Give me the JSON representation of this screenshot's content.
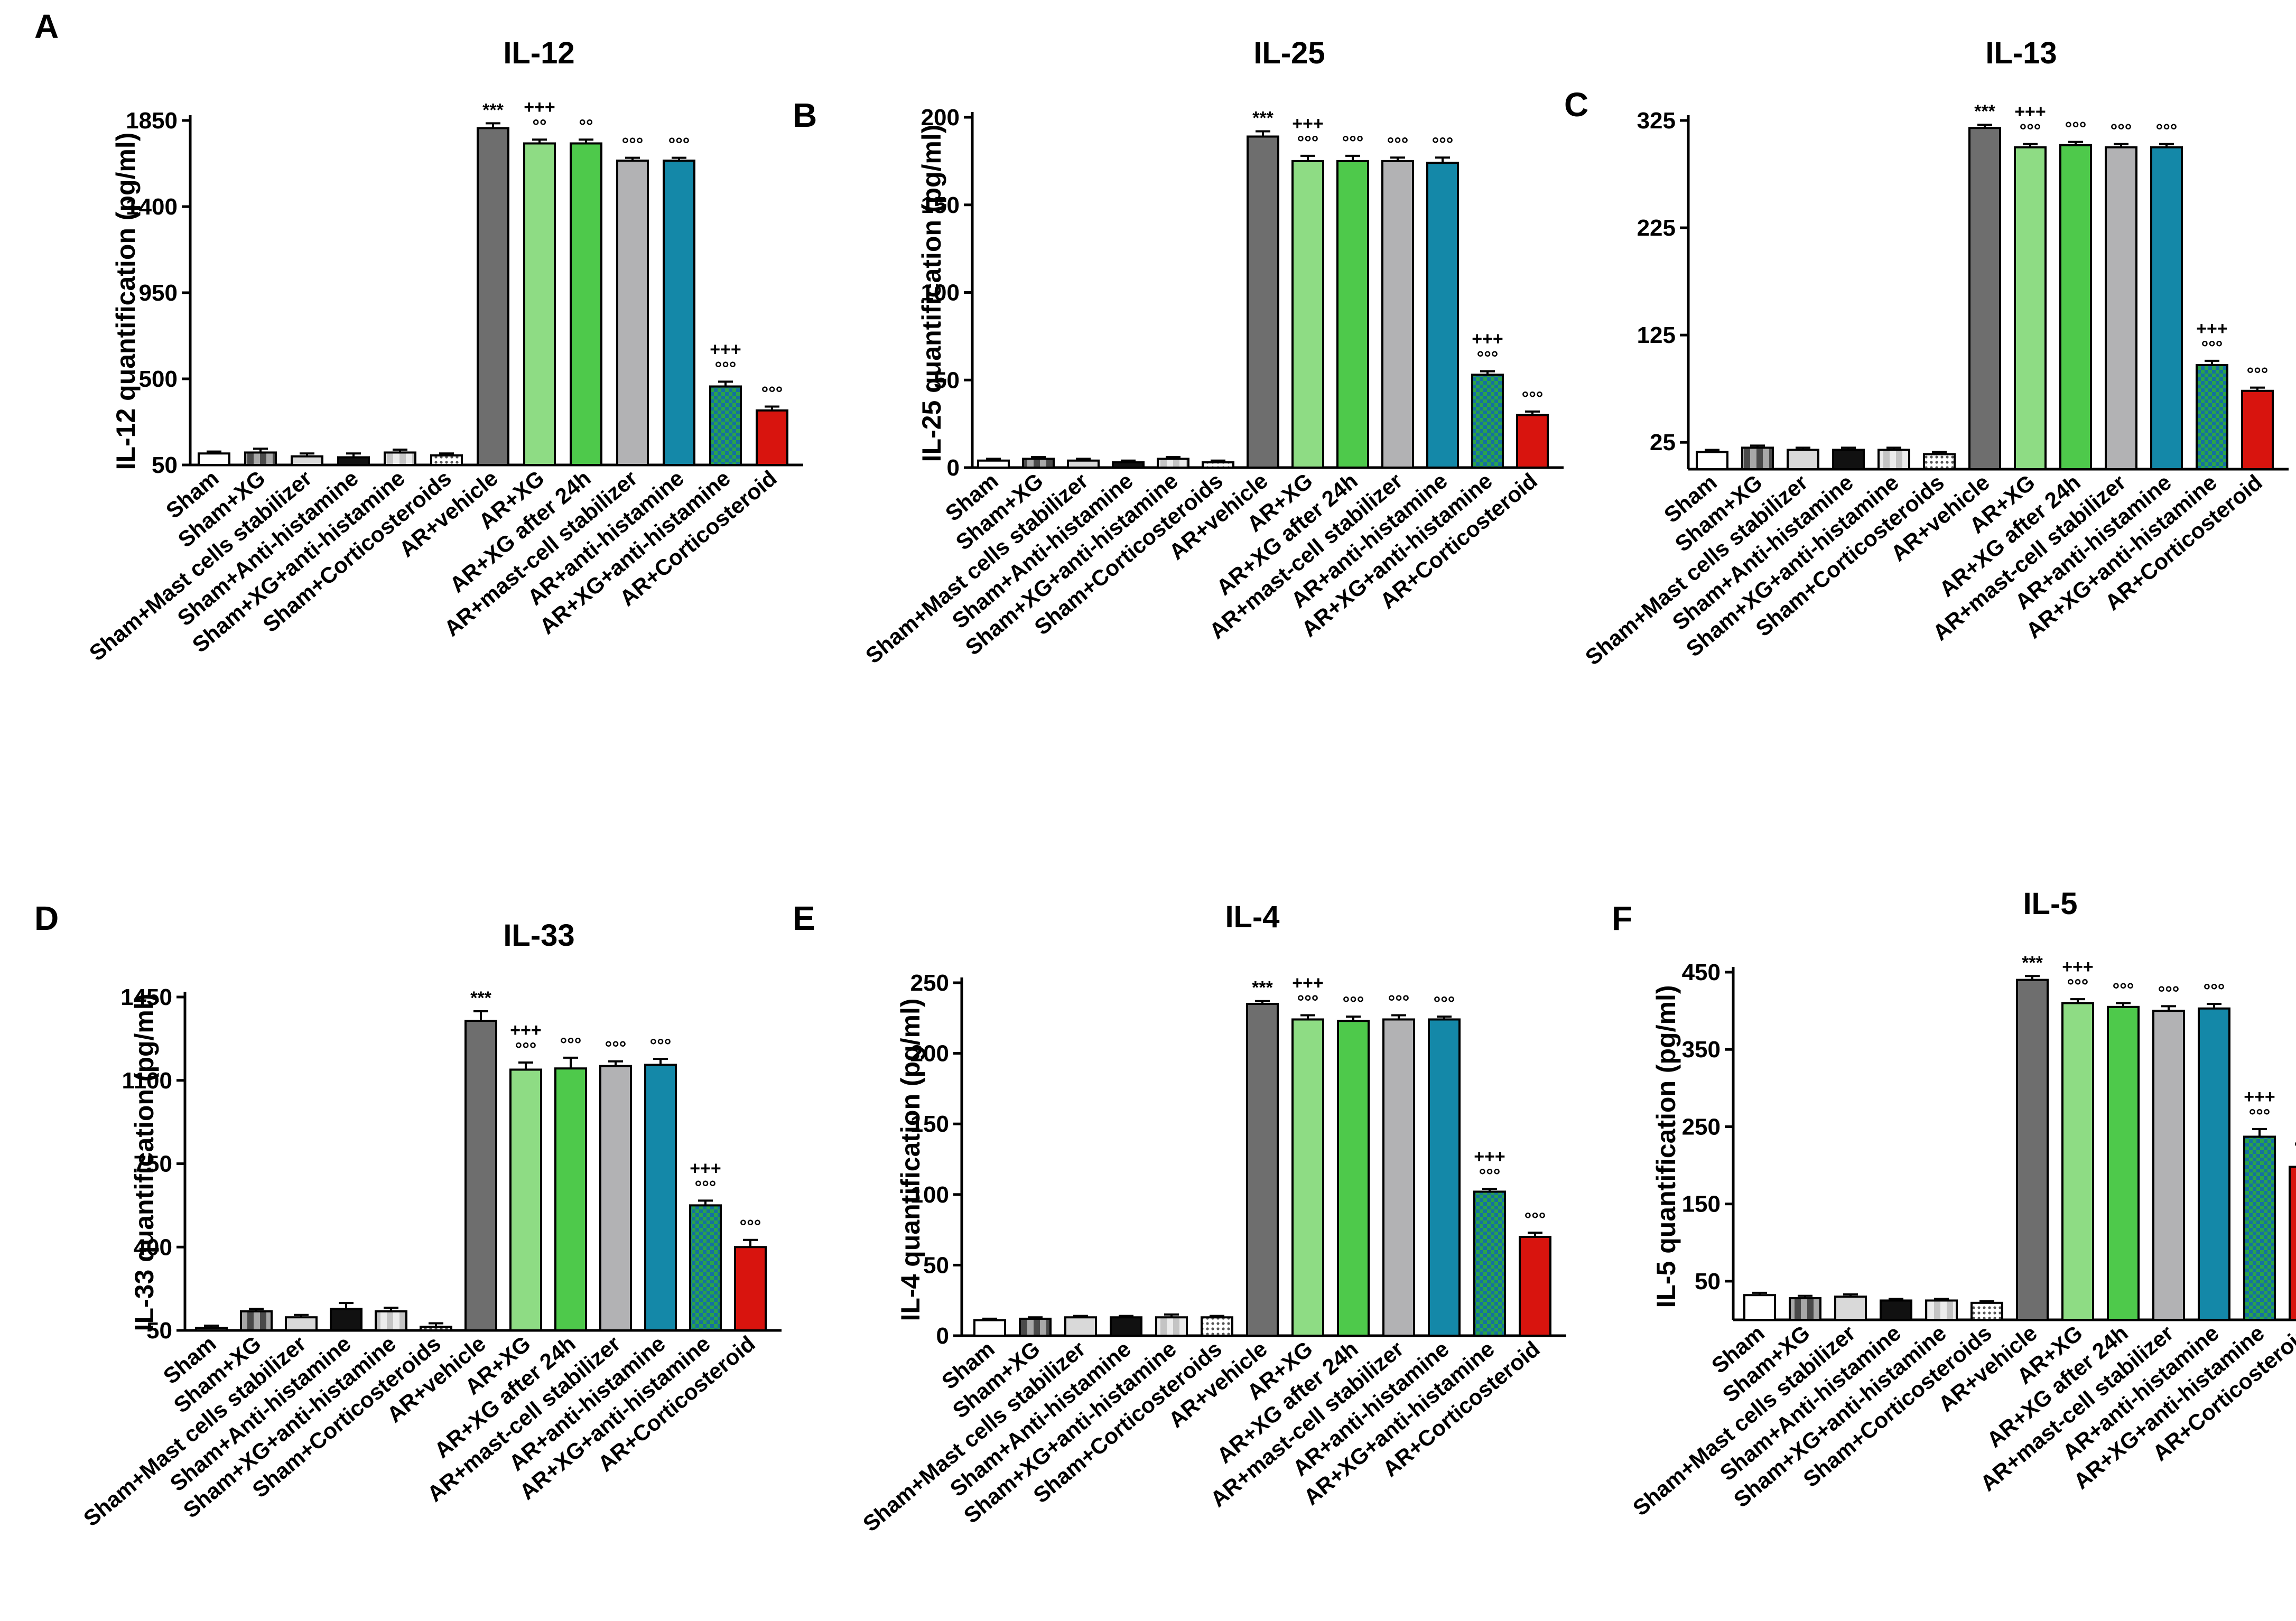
{
  "categories": [
    "Sham",
    "Sham+XG",
    "Sham+Mast cells stabilizer",
    "Sham+Anti-histamine",
    "Sham+XG+anti-histamine",
    "Sham+Corticosteroids",
    "AR+vehicle",
    "AR+XG",
    "AR+XG after 24h",
    "AR+mast-cell stabilizer",
    "AR+anti-histamine",
    "AR+XG+anti-histamine",
    "AR+Corticosteroid"
  ],
  "colors": [
    "#ffffff",
    "#707070",
    "#d9d9d9",
    "#111111",
    "#d9d9d9",
    "#ffffff",
    "#6e6e6e",
    "#8edc84",
    "#4ec94b",
    "#b2b2b4",
    "#1488a8",
    "#1a9e3e",
    "#d8140e"
  ],
  "chart_data": [
    {
      "panel": "A",
      "type": "bar",
      "title": "IL-12",
      "ylabel": "IL-12 quantification (pg/ml)",
      "ylim": [
        50,
        1850
      ],
      "yticks": [
        50,
        500,
        950,
        1400,
        1850
      ],
      "values": [
        110,
        115,
        95,
        90,
        115,
        100,
        1810,
        1730,
        1730,
        1640,
        1640,
        460,
        335
      ],
      "errors": [
        10,
        20,
        15,
        20,
        15,
        10,
        25,
        20,
        20,
        15,
        15,
        25,
        20
      ],
      "annotations": [
        "",
        "",
        "",
        "",
        "",
        "",
        "***",
        "+++\n°°",
        "°°",
        "°°°",
        "°°°",
        "+++\n°°°",
        "°°°"
      ]
    },
    {
      "panel": "B",
      "type": "bar",
      "title": "IL-25",
      "ylabel": "IL-25 quantification (pg/ml)",
      "ylim": [
        0,
        200
      ],
      "yticks": [
        0,
        50,
        100,
        150,
        200
      ],
      "values": [
        4,
        5,
        4,
        3,
        5,
        3,
        189,
        175,
        175,
        175,
        174,
        53,
        30
      ],
      "errors": [
        1,
        1,
        1,
        1,
        1,
        1,
        3,
        3,
        3,
        2,
        3,
        2,
        2
      ],
      "annotations": [
        "",
        "",
        "",
        "",
        "",
        "",
        "***",
        "+++\n°°°",
        "°°°",
        "°°°",
        "°°°",
        "+++\n°°°",
        "°°°"
      ]
    },
    {
      "panel": "C",
      "type": "bar",
      "title": "IL-13",
      "ylabel": "",
      "ylim": [
        0,
        325
      ],
      "yticks": [
        25,
        125,
        225,
        325
      ],
      "values": [
        16,
        20,
        18,
        18,
        18,
        14,
        318,
        300,
        302,
        300,
        300,
        97,
        73
      ],
      "errors": [
        2,
        2,
        2,
        2,
        2,
        2,
        3,
        3,
        3,
        3,
        3,
        4,
        3
      ],
      "annotations": [
        "",
        "",
        "",
        "",
        "",
        "",
        "***",
        "+++\n°°°",
        "°°°",
        "°°°",
        "°°°",
        "+++\n°°°",
        "°°°"
      ]
    },
    {
      "panel": "D",
      "type": "bar",
      "title": "IL-33",
      "ylabel": "IL-33 quantification (pg/ml)",
      "ylim": [
        50,
        1450
      ],
      "yticks": [
        50,
        400,
        750,
        1100,
        1450
      ],
      "values": [
        60,
        130,
        105,
        140,
        130,
        65,
        1350,
        1145,
        1150,
        1160,
        1165,
        575,
        400
      ],
      "errors": [
        10,
        10,
        10,
        25,
        15,
        15,
        40,
        30,
        45,
        20,
        25,
        20,
        30
      ],
      "annotations": [
        "",
        "",
        "",
        "",
        "",
        "",
        "***",
        "+++\n°°°",
        "°°°",
        "°°°",
        "°°°",
        "+++\n°°°",
        "°°°"
      ]
    },
    {
      "panel": "E",
      "type": "bar",
      "title": "IL-4",
      "ylabel": "IL-4 quantification (pg/ml)",
      "ylim": [
        0,
        250
      ],
      "yticks": [
        0,
        50,
        100,
        150,
        200,
        250
      ],
      "values": [
        11,
        12,
        13,
        13,
        13,
        13,
        235,
        224,
        223,
        224,
        224,
        102,
        70
      ],
      "errors": [
        1,
        1,
        1,
        1,
        2,
        1,
        2,
        3,
        3,
        3,
        2,
        2,
        3
      ],
      "annotations": [
        "",
        "",
        "",
        "",
        "",
        "",
        "***",
        "+++\n°°°",
        "°°°",
        "°°°",
        "°°°",
        "+++\n°°°",
        "°°°"
      ]
    },
    {
      "panel": "F",
      "type": "bar",
      "title": "IL-5",
      "ylabel": "IL-5 quantification (pg/ml)",
      "ylim": [
        0,
        450
      ],
      "yticks": [
        50,
        150,
        250,
        350,
        450
      ],
      "values": [
        32,
        28,
        30,
        25,
        25,
        22,
        440,
        410,
        405,
        400,
        403,
        237,
        198
      ],
      "errors": [
        3,
        3,
        3,
        2,
        2,
        2,
        5,
        5,
        5,
        6,
        6,
        10,
        7
      ],
      "annotations": [
        "",
        "",
        "",
        "",
        "",
        "",
        "***",
        "+++\n°°°",
        "°°°",
        "°°°",
        "°°°",
        "+++\n°°°",
        "°°°"
      ]
    }
  ]
}
